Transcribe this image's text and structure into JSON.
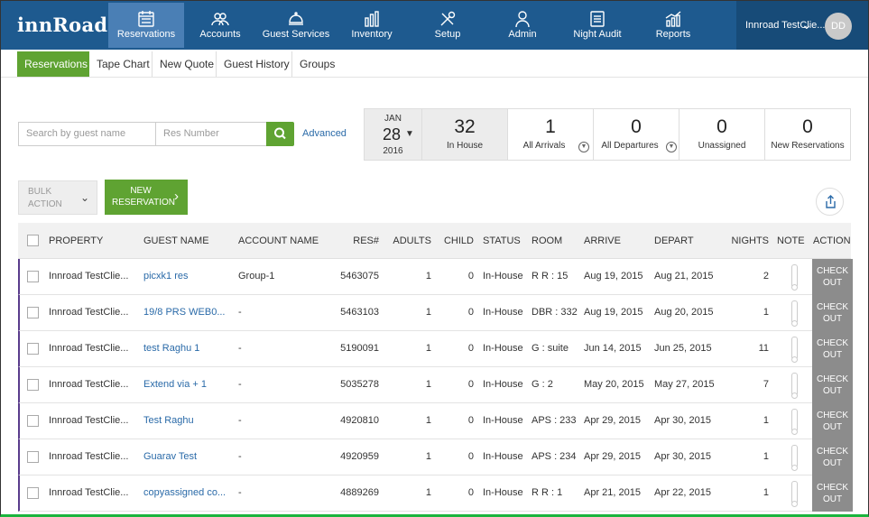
{
  "app": {
    "logo": "innRoad"
  },
  "topnav": [
    {
      "label": "Reservations",
      "icon": "calendar-icon",
      "active": true
    },
    {
      "label": "Accounts",
      "icon": "users-icon"
    },
    {
      "label": "Guest Services",
      "icon": "bell-icon"
    },
    {
      "label": "Inventory",
      "icon": "bars-icon"
    },
    {
      "label": "Setup",
      "icon": "wrench-icon"
    },
    {
      "label": "Admin",
      "icon": "person-icon"
    },
    {
      "label": "Night Audit",
      "icon": "document-icon"
    },
    {
      "label": "Reports",
      "icon": "chart-icon"
    }
  ],
  "user": {
    "name": "Innroad TestClie...",
    "initials": "DD"
  },
  "subnav": [
    {
      "label": "Reservations",
      "active": true
    },
    {
      "label": "Tape Chart"
    },
    {
      "label": "New Quote"
    },
    {
      "label": "Guest History"
    },
    {
      "label": "Groups"
    }
  ],
  "search": {
    "guest_placeholder": "Search by guest name",
    "res_placeholder": "Res Number",
    "advanced_label": "Advanced"
  },
  "date": {
    "month": "JAN",
    "day": "28",
    "year": "2016"
  },
  "stats": [
    {
      "value": "32",
      "label": "In House"
    },
    {
      "value": "1",
      "label": "All Arrivals"
    },
    {
      "value": "0",
      "label": "All Departures"
    },
    {
      "value": "0",
      "label": "Unassigned"
    },
    {
      "value": "0",
      "label": "New Reservations"
    }
  ],
  "actions": {
    "bulk_line1": "BULK",
    "bulk_line2": "ACTION",
    "new_line1": "NEW",
    "new_line2": "RESERVATION"
  },
  "table": {
    "headers": {
      "property": "PROPERTY",
      "guest": "GUEST NAME",
      "account": "ACCOUNT NAME",
      "res": "RES#",
      "adults": "ADULTS",
      "child": "CHILD",
      "status": "STATUS",
      "room": "ROOM",
      "arrive": "ARRIVE",
      "depart": "DEPART",
      "nights": "NIGHTS",
      "note": "NOTE",
      "action": "ACTION"
    },
    "checkout_line1": "CHECK",
    "checkout_line2": "OUT",
    "rows": [
      {
        "property": "Innroad TestClie...",
        "guest": "picxk1 res",
        "account": "Group-1",
        "res": "5463075",
        "adults": "1",
        "child": "0",
        "status": "In-House",
        "room": "R R : 15",
        "arrive": "Aug 19, 2015",
        "depart": "Aug 21, 2015",
        "nights": "2"
      },
      {
        "property": "Innroad TestClie...",
        "guest": "19/8 PRS WEB0...",
        "account": "-",
        "res": "5463103",
        "adults": "1",
        "child": "0",
        "status": "In-House",
        "room": "DBR : 332",
        "arrive": "Aug 19, 2015",
        "depart": "Aug 20, 2015",
        "nights": "1"
      },
      {
        "property": "Innroad TestClie...",
        "guest": "test Raghu 1",
        "account": "-",
        "res": "5190091",
        "adults": "1",
        "child": "0",
        "status": "In-House",
        "room": "G : suite",
        "arrive": "Jun 14, 2015",
        "depart": "Jun 25, 2015",
        "nights": "11"
      },
      {
        "property": "Innroad TestClie...",
        "guest": "Extend via + 1",
        "account": "-",
        "res": "5035278",
        "adults": "1",
        "child": "0",
        "status": "In-House",
        "room": "G : 2",
        "arrive": "May 20, 2015",
        "depart": "May 27, 2015",
        "nights": "7"
      },
      {
        "property": "Innroad TestClie...",
        "guest": "Test Raghu",
        "account": "-",
        "res": "4920810",
        "adults": "1",
        "child": "0",
        "status": "In-House",
        "room": "APS : 233",
        "arrive": "Apr 29, 2015",
        "depart": "Apr 30, 2015",
        "nights": "1"
      },
      {
        "property": "Innroad TestClie...",
        "guest": "Guarav Test",
        "account": "-",
        "res": "4920959",
        "adults": "1",
        "child": "0",
        "status": "In-House",
        "room": "APS : 234",
        "arrive": "Apr 29, 2015",
        "depart": "Apr 30, 2015",
        "nights": "1"
      },
      {
        "property": "Innroad TestClie...",
        "guest": "copyassigned co...",
        "account": "-",
        "res": "4889269",
        "adults": "1",
        "child": "0",
        "status": "In-House",
        "room": "R R : 1",
        "arrive": "Apr 21, 2015",
        "depart": "Apr 22, 2015",
        "nights": "1"
      }
    ]
  }
}
